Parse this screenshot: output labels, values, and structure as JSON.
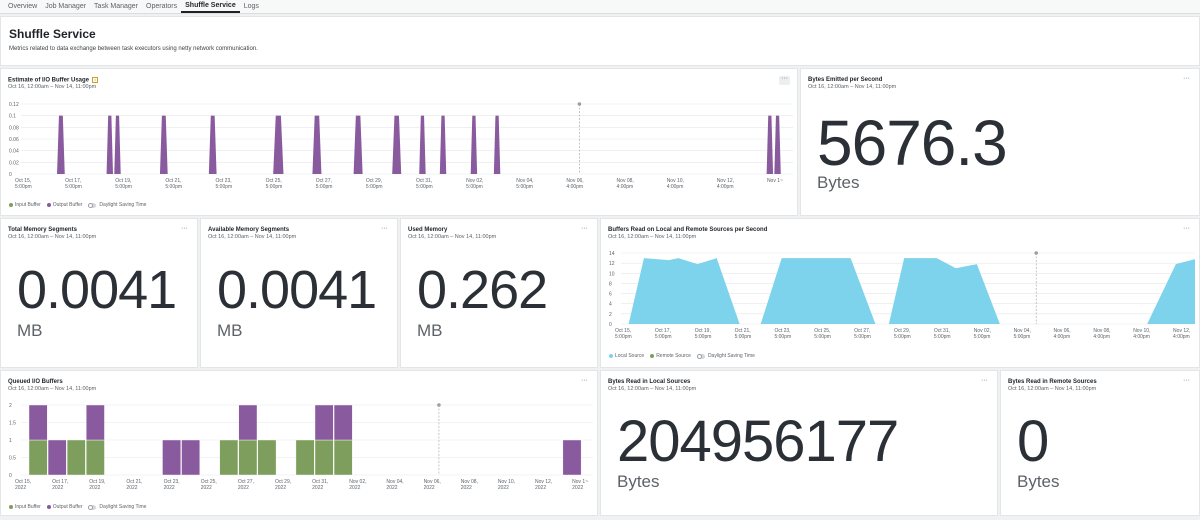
{
  "tabs": [
    "Overview",
    "Job Manager",
    "Task Manager",
    "Operators",
    "Shuffle Service",
    "Logs"
  ],
  "active_tab": "Shuffle Service",
  "page": {
    "title": "Shuffle Service",
    "description": "Metrics related to data exchange between task executors using netty network communication."
  },
  "date_range": "Oct 16, 12:00am – Nov 14, 11:00pm",
  "legend": {
    "input_buffer": "Input Buffer",
    "output_buffer": "Output Buffer",
    "local_source": "Local Source",
    "remote_source": "Remote Source",
    "dst": "Daylight Saving Time"
  },
  "more_icon": "ellipsis-icon",
  "cards": {
    "io_buffer": {
      "title": "Estimate of I/O Buffer Usage",
      "subtitle": "Oct 16, 12:00am – Nov 14, 11:00pm"
    },
    "bytes_emitted": {
      "title": "Bytes Emitted per Second",
      "subtitle": "Oct 16, 12:00am – Nov 14, 11:00pm",
      "value": "5676.3",
      "unit": "Bytes"
    },
    "total_mem": {
      "title": "Total Memory Segments",
      "subtitle": "Oct 16, 12:00am – Nov 14, 11:00pm",
      "value": "0.0041",
      "unit": "MB"
    },
    "avail_mem": {
      "title": "Available Memory Segments",
      "subtitle": "Oct 16, 12:00am – Nov 14, 11:00pm",
      "value": "0.0041",
      "unit": "MB"
    },
    "used_mem": {
      "title": "Used Memory",
      "subtitle": "Oct 16, 12:00am – Nov 14, 11:00pm",
      "value": "0.262",
      "unit": "MB"
    },
    "buffers_read": {
      "title": "Buffers Read on Local and Remote Sources per Second",
      "subtitle": "Oct 16, 12:00am – Nov 14, 11:00pm"
    },
    "queued": {
      "title": "Queued I/O Buffers",
      "subtitle": "Oct 16, 12:00am – Nov 14, 11:00pm"
    },
    "bytes_local": {
      "title": "Bytes Read in Local Sources",
      "subtitle": "Oct 16, 12:00am – Nov 14, 11:00pm",
      "value": "204956177",
      "unit": "Bytes"
    },
    "bytes_remote": {
      "title": "Bytes Read in Remote Sources",
      "subtitle": "Oct 16, 12:00am – Nov 14, 11:00pm",
      "value": "0",
      "unit": "Bytes"
    }
  },
  "colors": {
    "purple": "#8a5a9f",
    "green": "#7d9e5c",
    "cyan": "#7dd3ec",
    "grid": "#e6e8ea",
    "marker": "#9aa0a6"
  },
  "chart_data": [
    {
      "id": "io_buffer",
      "type": "area",
      "x_range": [
        0,
        30
      ],
      "ylim": [
        0,
        0.12
      ],
      "y_ticks": [
        "0.12",
        "0.1",
        "0.08",
        "0.06",
        "0.04",
        "0.02",
        "0"
      ],
      "x_ticks": [
        [
          "Oct 15,",
          "5:00pm"
        ],
        [
          "Oct 17,",
          "5:00pm"
        ],
        [
          "Oct 19,",
          "5:00pm"
        ],
        [
          "Oct 21,",
          "5:00pm"
        ],
        [
          "Oct 23,",
          "5:00pm"
        ],
        [
          "Oct 25,",
          "5:00pm"
        ],
        [
          "Oct 27,",
          "5:00pm"
        ],
        [
          "Oct 29,",
          "5:00pm"
        ],
        [
          "Oct 31,",
          "5:00pm"
        ],
        [
          "Nov 02,",
          "5:00pm"
        ],
        [
          "Nov 04,",
          "5:00pm"
        ],
        [
          "Nov 06,",
          "4:00pm"
        ],
        [
          "Nov 08,",
          "4:00pm"
        ],
        [
          "Nov 10,",
          "4:00pm"
        ],
        [
          "Nov 12,",
          "4:00pm"
        ],
        [
          "Nov 1~",
          ""
        ]
      ],
      "marker_x": 21.7,
      "series": [
        {
          "name": "Output Buffer",
          "color": "#8a5a9f",
          "spikes": [
            [
              1.55,
              0.3,
              0.1
            ],
            [
              3.45,
              0.25,
              0.1
            ],
            [
              3.75,
              0.25,
              0.1
            ],
            [
              5.55,
              0.3,
              0.1
            ],
            [
              7.45,
              0.3,
              0.1
            ],
            [
              10.0,
              0.4,
              0.1
            ],
            [
              11.5,
              0.35,
              0.1
            ],
            [
              13.1,
              0.35,
              0.1
            ],
            [
              14.6,
              0.35,
              0.1
            ],
            [
              15.6,
              0.25,
              0.1
            ],
            [
              16.4,
              0.25,
              0.1
            ],
            [
              17.6,
              0.25,
              0.1
            ],
            [
              18.5,
              0.25,
              0.1
            ],
            [
              29.1,
              0.25,
              0.1
            ],
            [
              29.4,
              0.25,
              0.1
            ],
            [
              30.3,
              0.25,
              0.1
            ]
          ]
        }
      ]
    },
    {
      "id": "buffers_read",
      "type": "area",
      "x_range": [
        0,
        30
      ],
      "ylim": [
        0,
        14
      ],
      "y_ticks": [
        "14",
        "12",
        "10",
        "8",
        "6",
        "4",
        "2",
        "0"
      ],
      "x_ticks": [
        [
          "Oct 15,",
          "5:00pm"
        ],
        [
          "Oct 17,",
          "5:00pm"
        ],
        [
          "Oct 19,",
          "5:00pm"
        ],
        [
          "Oct 21,",
          "5:00pm"
        ],
        [
          "Oct 23,",
          "5:00pm"
        ],
        [
          "Oct 25,",
          "5:00pm"
        ],
        [
          "Oct 27,",
          "5:00pm"
        ],
        [
          "Oct 29,",
          "5:00pm"
        ],
        [
          "Oct 31,",
          "5:00pm"
        ],
        [
          "Nov 02,",
          "5:00pm"
        ],
        [
          "Nov 04,",
          "5:00pm"
        ],
        [
          "Nov 06,",
          "4:00pm"
        ],
        [
          "Nov 08,",
          "4:00pm"
        ],
        [
          "Nov 10,",
          "4:00pm"
        ],
        [
          "Nov 12,",
          "4:00pm"
        ]
      ],
      "marker_x": 21.7,
      "series": [
        {
          "name": "Local Source",
          "color": "#7dd3ec",
          "points": [
            [
              0.4,
              0
            ],
            [
              1.2,
              13
            ],
            [
              2.5,
              12.6
            ],
            [
              3.0,
              13
            ],
            [
              4.0,
              11.8
            ],
            [
              5.0,
              13
            ],
            [
              6.2,
              0
            ],
            [
              7.3,
              0
            ],
            [
              8.4,
              13
            ],
            [
              12.0,
              13
            ],
            [
              13.3,
              0
            ],
            [
              14.0,
              0
            ],
            [
              14.8,
              13
            ],
            [
              16.5,
              13
            ],
            [
              17.5,
              11
            ],
            [
              18.6,
              11.8
            ],
            [
              19.8,
              0
            ],
            [
              27.5,
              0
            ],
            [
              29.0,
              11.8
            ],
            [
              30,
              12.8
            ]
          ]
        },
        {
          "name": "Remote Source",
          "color": "#7d9e5c",
          "points": []
        }
      ]
    },
    {
      "id": "queued",
      "type": "bar",
      "ylim": [
        0,
        2
      ],
      "y_ticks": [
        "2",
        "1.5",
        "1",
        "0.5",
        "0"
      ],
      "x_ticks": [
        [
          "Oct 15,",
          "2022"
        ],
        [
          "Oct 17,",
          "2022"
        ],
        [
          "Oct 19,",
          "2022"
        ],
        [
          "Oct 21,",
          "2022"
        ],
        [
          "Oct 23,",
          "2022"
        ],
        [
          "Oct 25,",
          "2022"
        ],
        [
          "Oct 27,",
          "2022"
        ],
        [
          "Oct 29,",
          "2022"
        ],
        [
          "Oct 31,",
          "2022"
        ],
        [
          "Nov 02,",
          "2022"
        ],
        [
          "Nov 04,",
          "2022"
        ],
        [
          "Nov 06,",
          "2022"
        ],
        [
          "Nov 08,",
          "2022"
        ],
        [
          "Nov 10,",
          "2022"
        ],
        [
          "Nov 12,",
          "2022"
        ],
        [
          "Nov 1~",
          "2022"
        ]
      ],
      "marker_x": 21.5,
      "series": [
        {
          "name": "Input Buffer",
          "color": "#7d9e5c",
          "values": [
            1,
            0,
            1,
            1,
            0,
            0,
            0,
            0,
            0,
            0,
            1,
            1,
            1,
            0,
            1,
            1,
            1,
            0,
            0,
            0,
            0,
            0,
            0,
            0,
            0,
            0,
            0,
            0,
            0,
            0
          ]
        },
        {
          "name": "Output Buffer",
          "color": "#8a5a9f",
          "values": [
            1,
            1,
            0,
            1,
            0,
            0,
            0,
            1,
            1,
            0,
            0,
            1,
            0,
            0,
            0,
            1,
            1,
            0,
            0,
            0,
            0,
            0,
            0,
            0,
            0,
            0,
            0,
            0,
            1,
            0
          ]
        }
      ]
    }
  ]
}
